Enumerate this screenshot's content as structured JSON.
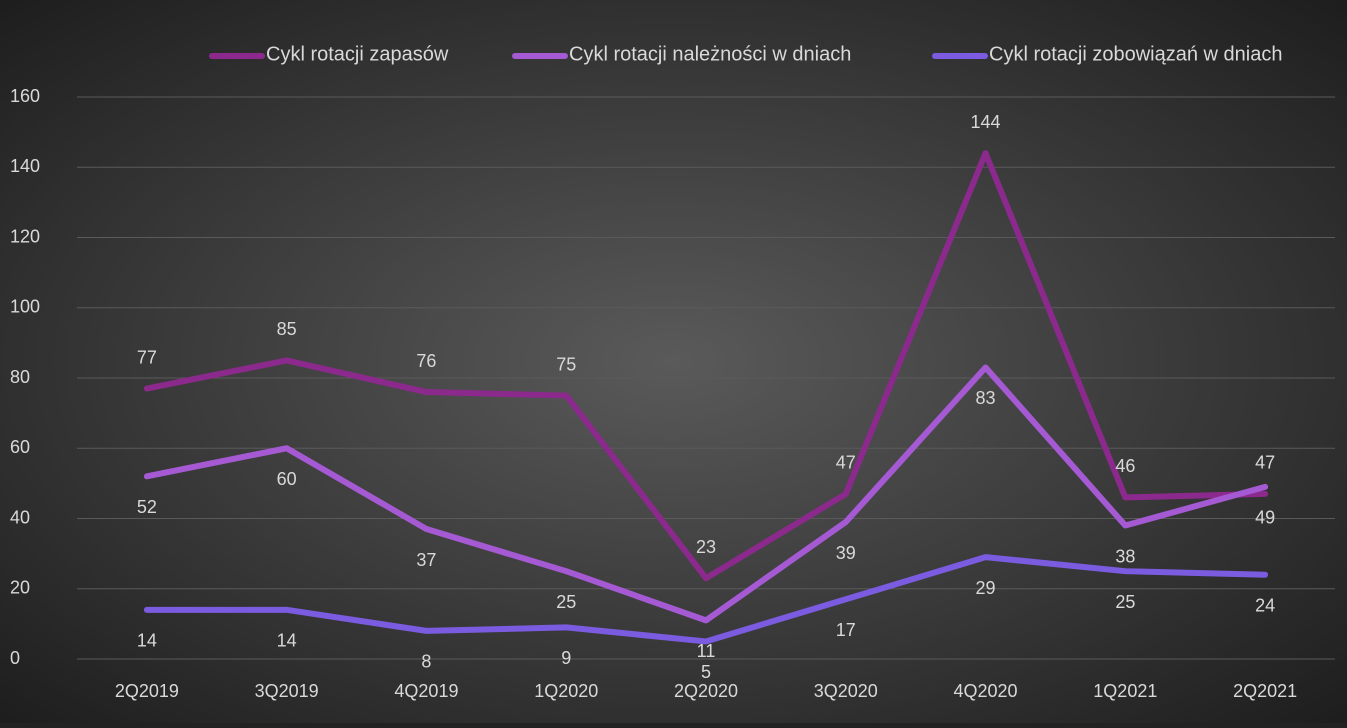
{
  "chart_data": {
    "type": "line",
    "categories": [
      "2Q2019",
      "3Q2019",
      "4Q2019",
      "1Q2020",
      "2Q2020",
      "3Q2020",
      "4Q2020",
      "1Q2021",
      "2Q2021"
    ],
    "series": [
      {
        "name": "Cykl rotacji zapasów",
        "color": "#8b2a8c",
        "values": [
          77,
          85,
          76,
          75,
          23,
          47,
          144,
          46,
          47
        ]
      },
      {
        "name": "Cykl rotacji należności w dniach",
        "color": "#a55ad4",
        "values": [
          52,
          60,
          37,
          25,
          11,
          39,
          83,
          38,
          49
        ]
      },
      {
        "name": "Cykl rotacji zobowiązań w dniach",
        "color": "#7b5ce0",
        "values": [
          14,
          14,
          8,
          9,
          5,
          17,
          29,
          25,
          24
        ]
      }
    ],
    "ylim": [
      0,
      160
    ],
    "yticks": [
      0,
      20,
      40,
      60,
      80,
      100,
      120,
      140,
      160
    ],
    "grid": true,
    "legend": "top"
  }
}
